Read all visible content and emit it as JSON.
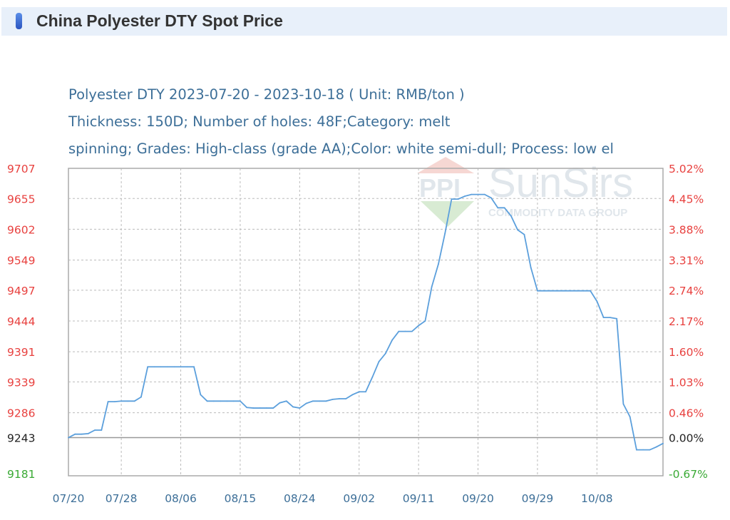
{
  "header": {
    "title": "China Polyester DTY Spot Price",
    "icon": "blue-pill-icon"
  },
  "subtitle": {
    "line1": "Polyester DTY 2023-07-20 - 2023-10-18     ( Unit: RMB/ton )",
    "line2": "Thickness: 150D; Number of holes: 48F;Category: melt",
    "line3": "spinning; Grades: High-class (grade AA);Color: white semi-dull; Process: low el"
  },
  "watermark": {
    "logo_text": "PPI",
    "brand": "SunSirs",
    "tagline": "COMMODITY DATA GROUP"
  },
  "colors": {
    "line": "#5b9fdc",
    "up": "#e8413f",
    "down": "#3aaa35",
    "base": "#222222",
    "grid": "#bbbbbb"
  },
  "chart_data": {
    "type": "line",
    "title": "",
    "base_value": 9243,
    "x_start": "2023-07-20",
    "x_end": "2023-10-18",
    "x_tick_labels": [
      {
        "date": "2023-07-20",
        "label": "07/20"
      },
      {
        "date": "2023-07-28",
        "label": "07/28"
      },
      {
        "date": "2023-08-06",
        "label": "08/06"
      },
      {
        "date": "2023-08-15",
        "label": "08/15"
      },
      {
        "date": "2023-08-24",
        "label": "08/24"
      },
      {
        "date": "2023-09-02",
        "label": "09/02"
      },
      {
        "date": "2023-09-11",
        "label": "09/11"
      },
      {
        "date": "2023-09-20",
        "label": "09/20"
      },
      {
        "date": "2023-09-29",
        "label": "09/29"
      },
      {
        "date": "2023-10-08",
        "label": "10/08"
      }
    ],
    "ylim": [
      9181,
      9707
    ],
    "y_ticks_left": [
      "9707",
      "9655",
      "9602",
      "9549",
      "9497",
      "9444",
      "9391",
      "9339",
      "9286",
      "9243",
      "9181"
    ],
    "y_ticks_right": [
      "5.02%",
      "4.45%",
      "3.88%",
      "3.31%",
      "2.74%",
      "2.17%",
      "1.60%",
      "1.03%",
      "0.46%",
      "0.00%",
      "-0.67%"
    ],
    "grid": true,
    "values": [
      9243,
      9249,
      9249,
      9250,
      9256,
      9256,
      9305,
      9305,
      9306,
      9306,
      9306,
      9313,
      9365,
      9365,
      9365,
      9365,
      9365,
      9365,
      9365,
      9365,
      9317,
      9306,
      9306,
      9306,
      9306,
      9306,
      9306,
      9295,
      9294,
      9294,
      9294,
      9294,
      9303,
      9306,
      9296,
      9294,
      9302,
      9306,
      9306,
      9306,
      9309,
      9310,
      9310,
      9317,
      9322,
      9322,
      9347,
      9374,
      9388,
      9411,
      9426,
      9426,
      9426,
      9436,
      9444,
      9503,
      9542,
      9595,
      9654,
      9654,
      9659,
      9662,
      9662,
      9662,
      9656,
      9639,
      9639,
      9625,
      9601,
      9593,
      9536,
      9496,
      9496,
      9496,
      9496,
      9496,
      9496,
      9496,
      9496,
      9496,
      9478,
      9450,
      9450,
      9448,
      9301,
      9279,
      9222,
      9222,
      9222,
      9227,
      9233
    ]
  }
}
